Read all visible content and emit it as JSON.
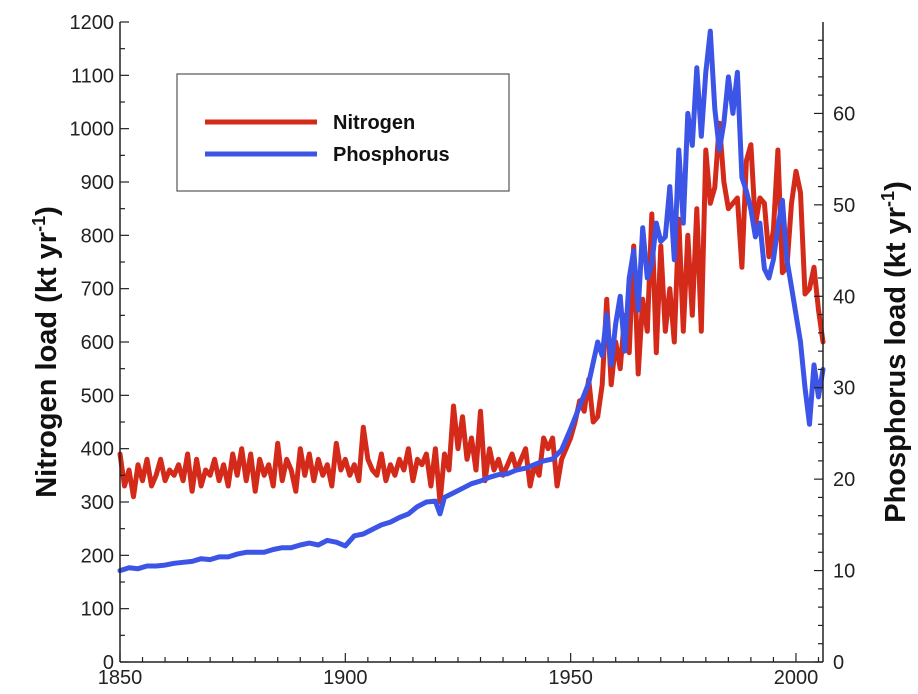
{
  "chart_data": {
    "type": "line",
    "title": "",
    "xlabel": "",
    "ylabel_left": "Nitrogen load (kt yr",
    "ylabel_right": "Phosphorus load (kt yr",
    "unit_superscript": "-1",
    "unit_close": ")",
    "xlim": [
      1850,
      2006
    ],
    "ylim_left": [
      0,
      1200
    ],
    "ylim_right": [
      0,
      70
    ],
    "x_ticks": [
      1850,
      1900,
      1950,
      2000
    ],
    "y_ticks_left": [
      0,
      100,
      200,
      300,
      400,
      500,
      600,
      700,
      800,
      900,
      1000,
      1100,
      1200
    ],
    "y_ticks_right": [
      0,
      10,
      20,
      30,
      40,
      50,
      60
    ],
    "legend_position": "top-left",
    "grid": false,
    "series": [
      {
        "name": "Nitrogen",
        "axis": "left",
        "color": "#d42a1a",
        "x": [
          1850,
          1851,
          1852,
          1853,
          1854,
          1855,
          1856,
          1857,
          1858,
          1859,
          1860,
          1861,
          1862,
          1863,
          1864,
          1865,
          1866,
          1867,
          1868,
          1869,
          1870,
          1871,
          1872,
          1873,
          1874,
          1875,
          1876,
          1877,
          1878,
          1879,
          1880,
          1881,
          1882,
          1883,
          1884,
          1885,
          1886,
          1887,
          1888,
          1889,
          1890,
          1891,
          1892,
          1893,
          1894,
          1895,
          1896,
          1897,
          1898,
          1899,
          1900,
          1901,
          1902,
          1903,
          1904,
          1905,
          1906,
          1907,
          1908,
          1909,
          1910,
          1911,
          1912,
          1913,
          1914,
          1915,
          1916,
          1917,
          1918,
          1919,
          1920,
          1921,
          1922,
          1923,
          1924,
          1925,
          1926,
          1927,
          1928,
          1929,
          1930,
          1931,
          1932,
          1933,
          1934,
          1935,
          1936,
          1937,
          1938,
          1939,
          1940,
          1941,
          1942,
          1943,
          1944,
          1945,
          1946,
          1947,
          1948,
          1949,
          1950,
          1951,
          1952,
          1953,
          1954,
          1955,
          1956,
          1957,
          1958,
          1959,
          1960,
          1961,
          1962,
          1963,
          1964,
          1965,
          1966,
          1967,
          1968,
          1969,
          1970,
          1971,
          1972,
          1973,
          1974,
          1975,
          1976,
          1977,
          1978,
          1979,
          1980,
          1981,
          1982,
          1983,
          1984,
          1985,
          1986,
          1987,
          1988,
          1989,
          1990,
          1991,
          1992,
          1993,
          1994,
          1995,
          1996,
          1997,
          1998,
          1999,
          2000,
          2001,
          2002,
          2003,
          2004,
          2005,
          2006
        ],
        "values": [
          390,
          330,
          360,
          310,
          370,
          340,
          380,
          330,
          350,
          380,
          340,
          360,
          350,
          370,
          340,
          390,
          320,
          380,
          330,
          360,
          350,
          380,
          340,
          370,
          330,
          390,
          350,
          400,
          340,
          390,
          320,
          380,
          350,
          370,
          330,
          410,
          340,
          380,
          360,
          320,
          400,
          350,
          390,
          340,
          380,
          350,
          370,
          330,
          410,
          360,
          380,
          350,
          370,
          340,
          440,
          380,
          360,
          350,
          390,
          340,
          370,
          350,
          380,
          360,
          400,
          340,
          380,
          370,
          390,
          330,
          400,
          300,
          390,
          360,
          480,
          400,
          460,
          380,
          420,
          360,
          470,
          340,
          400,
          360,
          380,
          350,
          370,
          390,
          360,
          380,
          400,
          330,
          370,
          350,
          420,
          400,
          420,
          330,
          380,
          400,
          420,
          450,
          490,
          470,
          530,
          450,
          460,
          520,
          680,
          520,
          600,
          550,
          650,
          580,
          780,
          540,
          680,
          620,
          840,
          580,
          780,
          620,
          700,
          600,
          830,
          620,
          800,
          650,
          850,
          620,
          960,
          860,
          890,
          1010,
          900,
          850,
          860,
          870,
          740,
          940,
          970,
          820,
          870,
          860,
          760,
          810,
          960,
          730,
          740,
          860,
          920,
          880,
          690,
          700,
          740,
          660,
          600
        ],
        "values_note": ""
      },
      {
        "name": "Phosphorus",
        "axis": "right",
        "color": "#3c55e6",
        "x": [
          1850,
          1852,
          1854,
          1856,
          1858,
          1860,
          1862,
          1864,
          1866,
          1868,
          1870,
          1872,
          1874,
          1876,
          1878,
          1880,
          1882,
          1884,
          1886,
          1888,
          1890,
          1892,
          1894,
          1896,
          1898,
          1900,
          1902,
          1904,
          1906,
          1908,
          1910,
          1912,
          1914,
          1916,
          1918,
          1920,
          1921,
          1922,
          1924,
          1926,
          1928,
          1930,
          1932,
          1934,
          1936,
          1938,
          1940,
          1942,
          1944,
          1946,
          1948,
          1950,
          1952,
          1954,
          1956,
          1957,
          1958,
          1959,
          1960,
          1961,
          1962,
          1963,
          1964,
          1965,
          1966,
          1967,
          1968,
          1969,
          1970,
          1971,
          1972,
          1973,
          1974,
          1975,
          1976,
          1977,
          1978,
          1979,
          1980,
          1981,
          1982,
          1983,
          1984,
          1985,
          1986,
          1987,
          1988,
          1989,
          1990,
          1991,
          1992,
          1993,
          1994,
          1995,
          1996,
          1997,
          1998,
          1999,
          2000,
          2001,
          2002,
          2003,
          2004,
          2005,
          2006
        ],
        "values": [
          10.0,
          10.3,
          10.2,
          10.5,
          10.5,
          10.6,
          10.8,
          10.9,
          11.0,
          11.3,
          11.2,
          11.5,
          11.5,
          11.8,
          12.0,
          12.0,
          12.0,
          12.3,
          12.5,
          12.5,
          12.8,
          13.0,
          12.8,
          13.3,
          13.1,
          12.7,
          13.8,
          14.0,
          14.5,
          15.0,
          15.3,
          15.8,
          16.2,
          17.0,
          17.5,
          17.6,
          16.2,
          18.0,
          18.5,
          19.0,
          19.5,
          19.8,
          20.2,
          20.5,
          20.6,
          21.0,
          21.2,
          21.6,
          22.0,
          22.2,
          23.2,
          25.5,
          28.0,
          30.5,
          35.0,
          33.5,
          38.0,
          32.5,
          37.0,
          40.0,
          34.0,
          42.0,
          45.0,
          38.5,
          47.5,
          42.0,
          43.5,
          48.0,
          46.0,
          46.5,
          52.0,
          44.0,
          56.0,
          48.0,
          60.0,
          56.5,
          65.0,
          57.5,
          64.5,
          69.0,
          60.5,
          56.0,
          59.0,
          64.0,
          60.0,
          64.5,
          53.0,
          51.5,
          49.5,
          46.5,
          48.0,
          43.0,
          42.0,
          44.0,
          47.5,
          50.5,
          44.0,
          41.0,
          38.0,
          35.0,
          30.0,
          26.0,
          32.5,
          29.0,
          32.0
        ]
      }
    ]
  }
}
